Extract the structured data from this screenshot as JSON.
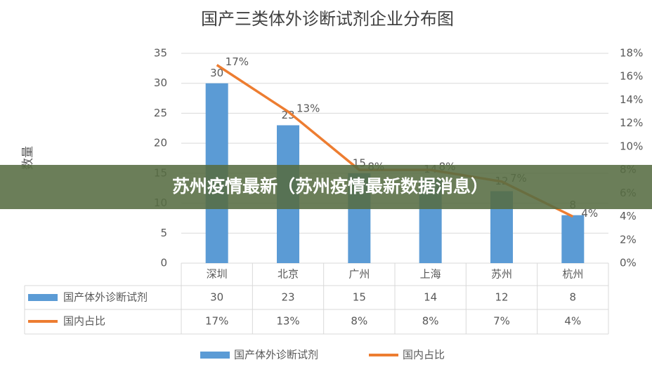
{
  "chart_data": {
    "type": "combo",
    "title": "国产三类体外诊断试剂企业分布图",
    "ylabel": "数量",
    "categories": [
      "深圳",
      "北京",
      "广州",
      "上海",
      "苏州",
      "杭州"
    ],
    "series": [
      {
        "name": "国产体外诊断试剂",
        "color": "#5b9bd5",
        "type": "bar",
        "values": [
          30,
          23,
          15,
          14,
          12,
          8
        ]
      },
      {
        "name": "国内占比",
        "color": "#ed7d31",
        "type": "line",
        "axis": "y2",
        "values": [
          17,
          13,
          8,
          8,
          7,
          4
        ],
        "value_labels": [
          "17%",
          "13%",
          "8%",
          "8%",
          "7%",
          "4%"
        ]
      }
    ],
    "ylim": [
      0,
      35
    ],
    "yticks": [
      0,
      5,
      10,
      15,
      20,
      25,
      30,
      35
    ],
    "y2lim": [
      0,
      18
    ],
    "y2ticks": [
      {
        "value": 0,
        "label": "0%"
      },
      {
        "value": 2,
        "label": "2%"
      },
      {
        "value": 4,
        "label": "4%"
      },
      {
        "value": 6,
        "label": "6%"
      },
      {
        "value": 8,
        "label": "8%"
      },
      {
        "value": 10,
        "label": "10%"
      },
      {
        "value": 12,
        "label": "12%"
      },
      {
        "value": 14,
        "label": "14%"
      },
      {
        "value": 16,
        "label": "16%"
      },
      {
        "value": 18,
        "label": "18%"
      }
    ],
    "grid": true
  },
  "banner": "苏州疫情最新（苏州疫情最新数据消息）"
}
